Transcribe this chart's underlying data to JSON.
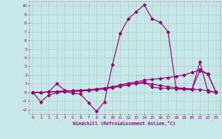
{
  "xlabel": "Windchill (Refroidissement éolien,°C)",
  "bg_color": "#c8e8e8",
  "line_color": "#990077",
  "grid_color": "#aacccc",
  "xlim": [
    -0.5,
    23.5
  ],
  "ylim": [
    -2.5,
    10.5
  ],
  "xticks": [
    0,
    1,
    2,
    3,
    4,
    5,
    6,
    7,
    8,
    9,
    10,
    11,
    12,
    13,
    14,
    15,
    16,
    17,
    18,
    19,
    20,
    21,
    22,
    23
  ],
  "yticks": [
    -2,
    -1,
    0,
    1,
    2,
    3,
    4,
    5,
    6,
    7,
    8,
    9,
    10
  ],
  "series1_x": [
    0,
    1,
    2,
    3,
    4,
    5,
    6,
    7,
    8,
    9,
    10,
    11,
    12,
    13,
    14,
    15,
    16,
    17,
    18,
    19,
    20,
    21,
    22,
    23
  ],
  "series1_y": [
    0,
    -1.1,
    -0.3,
    -0.05,
    0.1,
    -0.1,
    -0.2,
    -1.2,
    -2.2,
    -1.1,
    3.2,
    6.8,
    8.5,
    9.3,
    10.1,
    8.5,
    8.1,
    7.0,
    0.5,
    0.4,
    0.35,
    2.5,
    2.1,
    0.05
  ],
  "series2_x": [
    0,
    1,
    2,
    3,
    4,
    5,
    6,
    7,
    8,
    9,
    10,
    11,
    12,
    13,
    14,
    15,
    16,
    17,
    18,
    19,
    20,
    21,
    22,
    23
  ],
  "series2_y": [
    0,
    0.0,
    0.05,
    0.1,
    0.15,
    0.2,
    0.25,
    0.3,
    0.4,
    0.5,
    0.65,
    0.85,
    1.05,
    1.2,
    1.4,
    1.5,
    1.6,
    1.7,
    1.85,
    2.0,
    2.3,
    2.6,
    2.15,
    0.05
  ],
  "series3_x": [
    0,
    1,
    2,
    3,
    4,
    5,
    6,
    7,
    8,
    9,
    10,
    11,
    12,
    13,
    14,
    15,
    16,
    17,
    18,
    19,
    20,
    21,
    22,
    23
  ],
  "series3_y": [
    0,
    0.0,
    0.05,
    0.1,
    0.15,
    0.15,
    0.2,
    0.25,
    0.3,
    0.4,
    0.55,
    0.7,
    0.9,
    1.05,
    1.2,
    0.6,
    0.5,
    0.45,
    0.4,
    0.35,
    0.3,
    3.5,
    0.1,
    0.0
  ],
  "series4_x": [
    0,
    1,
    2,
    3,
    4,
    5,
    6,
    7,
    8,
    9,
    10,
    11,
    12,
    13,
    14,
    15,
    16,
    17,
    18,
    19,
    20,
    21,
    22,
    23
  ],
  "series4_y": [
    0,
    0.0,
    0.05,
    1.0,
    0.25,
    0.1,
    0.15,
    0.2,
    0.3,
    0.4,
    0.55,
    0.7,
    0.9,
    1.0,
    1.1,
    0.95,
    0.8,
    0.65,
    0.55,
    0.45,
    0.4,
    0.3,
    0.2,
    0.0
  ]
}
